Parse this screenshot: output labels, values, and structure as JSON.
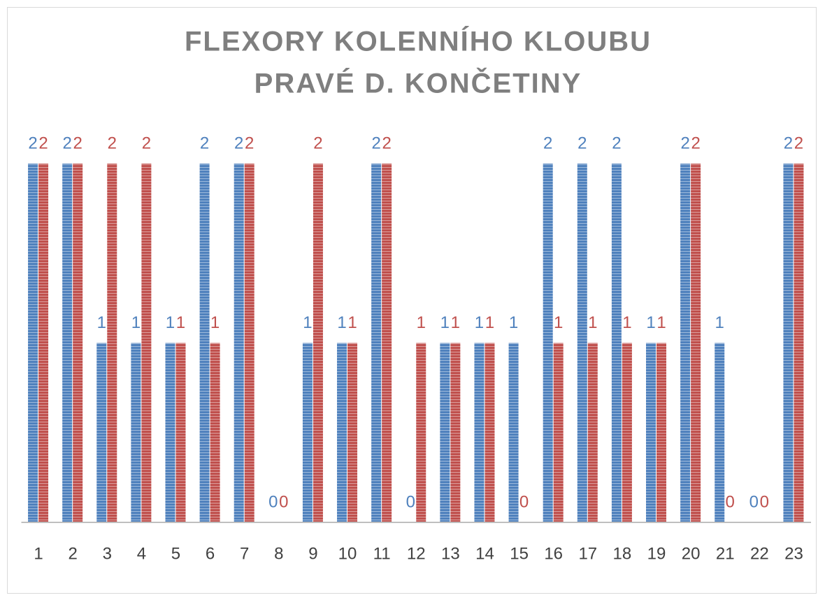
{
  "chart_data": {
    "type": "bar",
    "title": [
      "FLEXORY KOLENNÍHO KLOUBU",
      "PRAVÉ D. KONČETINY"
    ],
    "categories": [
      "1",
      "2",
      "3",
      "4",
      "5",
      "6",
      "7",
      "8",
      "9",
      "10",
      "11",
      "12",
      "13",
      "14",
      "15",
      "16",
      "17",
      "18",
      "19",
      "20",
      "21",
      "22",
      "23"
    ],
    "series": [
      {
        "color": "#4f81bd",
        "values": [
          2,
          2,
          1,
          1,
          1,
          2,
          2,
          0,
          1,
          1,
          2,
          0,
          1,
          1,
          1,
          2,
          2,
          2,
          1,
          2,
          1,
          0,
          2
        ]
      },
      {
        "color": "#c0504d",
        "values": [
          2,
          2,
          2,
          2,
          1,
          1,
          2,
          0,
          2,
          1,
          2,
          1,
          1,
          1,
          0,
          1,
          1,
          1,
          1,
          2,
          0,
          0,
          2
        ]
      }
    ]
  }
}
